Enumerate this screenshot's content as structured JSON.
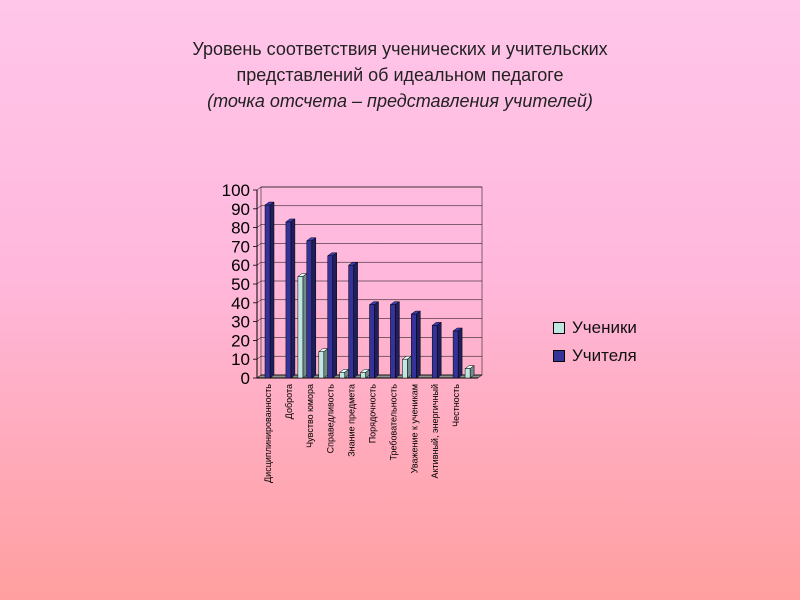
{
  "title": {
    "line1": "Уровень соответствия ученических и учительских",
    "line2": "представлений об идеальном педагоге",
    "line3": "(точка отсчета – представления учителей)"
  },
  "colors": {
    "students": "#bfe6e2",
    "teachers": "#35339a"
  },
  "chart_data": {
    "type": "bar",
    "categories": [
      "Дисциплинированность",
      "Доброта",
      "Чувство юмора",
      "Справедливость",
      "Знание предмета",
      "Порядочность",
      "Требовательность",
      "Уважение к ученикам",
      "Активный, энергичный",
      "Честность"
    ],
    "series": [
      {
        "name": "Ученики",
        "values": [
          0,
          54,
          14,
          3,
          3,
          0,
          10,
          0,
          0,
          5
        ]
      },
      {
        "name": "Учителя",
        "values": [
          92,
          83,
          73,
          65,
          60,
          39,
          39,
          34,
          28,
          25
        ]
      }
    ],
    "yticks": [
      "0",
      "10",
      "20",
      "30",
      "40",
      "50",
      "60",
      "70",
      "80",
      "90",
      "100"
    ],
    "ylim": [
      0,
      100
    ],
    "grid": true,
    "legend_position": "right"
  }
}
